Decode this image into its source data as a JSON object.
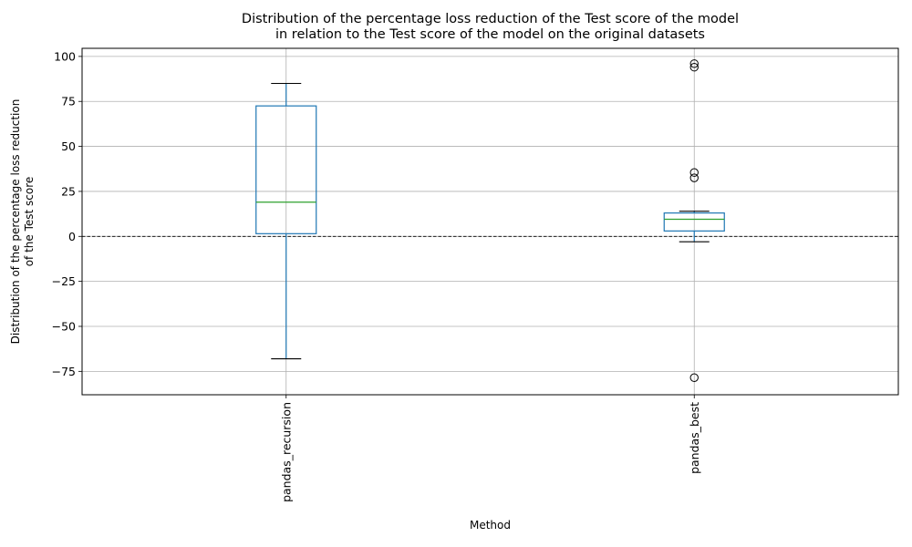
{
  "chart_data": {
    "type": "boxplot",
    "title_lines": [
      "Distribution of the percentage loss reduction of the Test score of the model",
      "in relation to the Test score of the model on the original datasets"
    ],
    "xlabel": "Method",
    "ylabel_lines": [
      "Distribution of the percentage loss reduction",
      "of the Test score"
    ],
    "ylim": [
      -88,
      104.5
    ],
    "yticks": [
      100,
      75,
      50,
      25,
      0,
      -25,
      -50,
      -75
    ],
    "grid": true,
    "reference_line": 0,
    "categories": [
      "pandas_recursion",
      "pandas_best"
    ],
    "boxes": [
      {
        "category": "pandas_recursion",
        "whisker_low": -68,
        "q1": 1.5,
        "median": 19,
        "q3": 72.5,
        "whisker_high": 85,
        "outliers": []
      },
      {
        "category": "pandas_best",
        "whisker_low": -3,
        "q1": 3,
        "median": 9.5,
        "q3": 13,
        "whisker_high": 14,
        "outliers": [
          96,
          94,
          35.5,
          32.5,
          -78.5
        ]
      }
    ],
    "colors": {
      "box": "#1f77b4",
      "median": "#2ca02c",
      "whisker_cap": "#000000",
      "grid": "#b0b0b0",
      "reference_line": "#000000"
    }
  }
}
